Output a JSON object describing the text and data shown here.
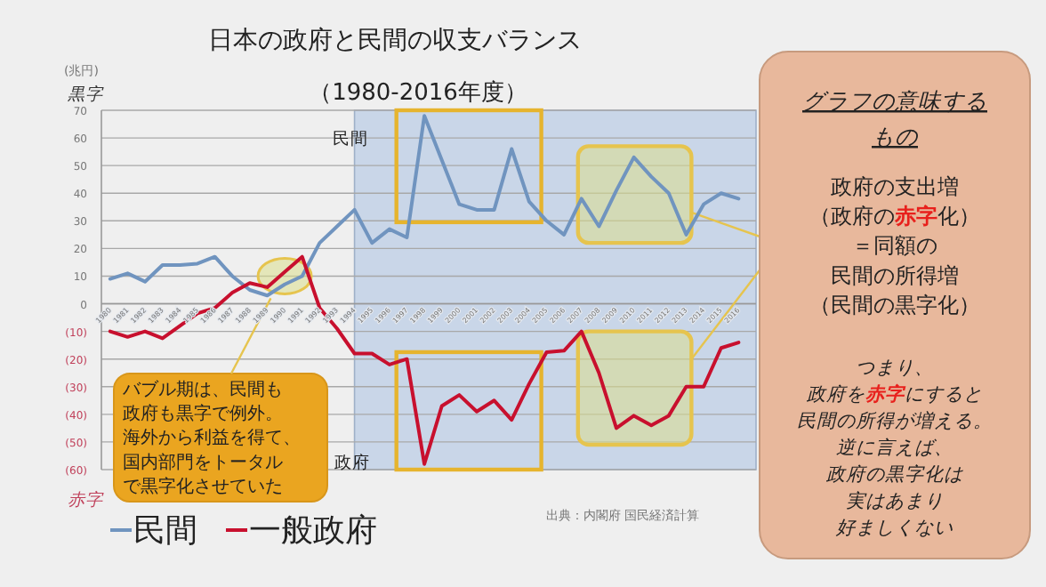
{
  "chart_data": {
    "type": "line",
    "title": "日本の政府と民間の収支バランス",
    "subtitle": "（1980-2016年度）",
    "ylabel": "(兆円)",
    "x": [
      1980,
      1981,
      1982,
      1983,
      1984,
      1985,
      1986,
      1987,
      1988,
      1989,
      1990,
      1991,
      1992,
      1993,
      1994,
      1995,
      1996,
      1997,
      1998,
      1999,
      2000,
      2001,
      2002,
      2003,
      2004,
      2005,
      2006,
      2007,
      2008,
      2009,
      2010,
      2011,
      2012,
      2013,
      2014,
      2015,
      2016
    ],
    "xlim": [
      1979.5,
      2017
    ],
    "xticks": [
      1980,
      1981,
      1982,
      1983,
      1984,
      1985,
      1986,
      1987,
      1988,
      1989,
      1990,
      1991,
      1992,
      1993,
      1994,
      1995,
      1996,
      1997,
      1998,
      1999,
      2000,
      2001,
      2002,
      2003,
      2004,
      2005,
      2006,
      2007,
      2008,
      2009,
      2010,
      2011,
      2012,
      2013,
      2014,
      2015,
      2016
    ],
    "ylim": [
      -60,
      70
    ],
    "yticks": [
      70,
      60,
      50,
      40,
      30,
      20,
      10,
      0,
      {
        "value": -10,
        "label": "(10)"
      },
      {
        "value": -20,
        "label": "(20)"
      },
      {
        "value": -30,
        "label": "(30)"
      },
      {
        "value": -40,
        "label": "(40)"
      },
      {
        "value": -50,
        "label": "(50)"
      },
      {
        "value": -60,
        "label": "(60)"
      }
    ],
    "grid": "y",
    "legend": "bottom left",
    "series": [
      {
        "name": "民間",
        "color": "#7094bf",
        "values": [
          9,
          11,
          8,
          14,
          14,
          14.5,
          17,
          10,
          5,
          3,
          7,
          10,
          22,
          28,
          34,
          22,
          27,
          24,
          68,
          52,
          36,
          34,
          34,
          56,
          37,
          30,
          25,
          38,
          28,
          41,
          53,
          46,
          40,
          25,
          36,
          40,
          38
        ]
      },
      {
        "name": "一般政府",
        "color": "#c8102e",
        "values": [
          -10,
          -12,
          -10,
          -12.5,
          -8,
          -3.5,
          -1.5,
          4,
          7.5,
          6,
          11.5,
          17,
          -1.5,
          -9,
          -18,
          -18,
          -22,
          -20,
          -58,
          -37,
          -33,
          -39,
          -35,
          -42,
          -29,
          -17.5,
          -17,
          -10,
          -25,
          -45,
          -40.5,
          -44,
          -40.5,
          -30,
          -30,
          -16,
          -14
        ]
      }
    ],
    "bands": [
      {
        "axis": "x",
        "from": 1994,
        "to": 2017,
        "color": "#c9d6e8"
      }
    ],
    "annotations": [
      "民間",
      "政府",
      "黒字",
      "赤字",
      {
        "text": "バブル期は、民間も",
        "x": 1989.2,
        "y": 2
      },
      "政府も黒字で例外。",
      "海外から利益を得て、",
      "国内部門をトータル",
      "で黒字化させていた",
      "グラフの意味する",
      "もの",
      "政府の支出増",
      "（政府の**赤字**化）",
      "＝同額の",
      "民間の所得増",
      "（民間の黒字化）",
      "つまり、",
      "政府を**赤字**にすると",
      "民間の所得が増える。",
      "逆に言えば、",
      "政府の黒字化は",
      "実はあまり",
      "好ましくない",
      "出典：内閣府 国民経済計算"
    ]
  }
}
